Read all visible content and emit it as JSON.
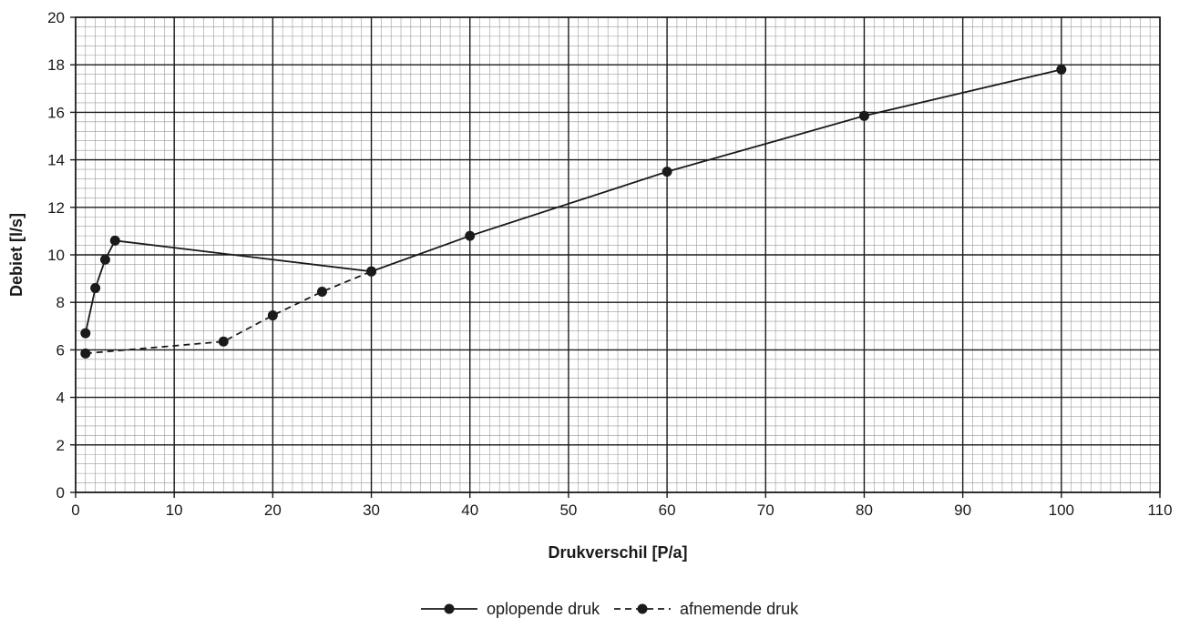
{
  "chart_data": {
    "type": "line",
    "title": "",
    "xlabel": "Drukverschil [P/a]",
    "ylabel": "Debiet [l/s]",
    "xlim": [
      0,
      110
    ],
    "ylim": [
      0,
      20
    ],
    "x_ticks": [
      0,
      10,
      20,
      30,
      40,
      50,
      60,
      70,
      80,
      90,
      100,
      110
    ],
    "y_ticks": [
      0,
      2,
      4,
      6,
      8,
      10,
      12,
      14,
      16,
      18,
      20
    ],
    "grid": true,
    "legend_position": "bottom-center",
    "series": [
      {
        "name": "oplopende druk",
        "style": "solid",
        "color": "#1a1a1a",
        "points": [
          [
            1,
            6.7
          ],
          [
            2,
            8.6
          ],
          [
            3,
            9.8
          ],
          [
            4,
            10.6
          ],
          [
            30,
            9.3
          ],
          [
            40,
            10.8
          ],
          [
            60,
            13.5
          ],
          [
            80,
            15.85
          ],
          [
            100,
            17.8
          ]
        ]
      },
      {
        "name": "afnemende druk",
        "style": "dashed",
        "color": "#1a1a1a",
        "points": [
          [
            1,
            5.85
          ],
          [
            15,
            6.35
          ],
          [
            20,
            7.45
          ],
          [
            25,
            8.45
          ],
          [
            30,
            9.3
          ]
        ]
      }
    ]
  }
}
